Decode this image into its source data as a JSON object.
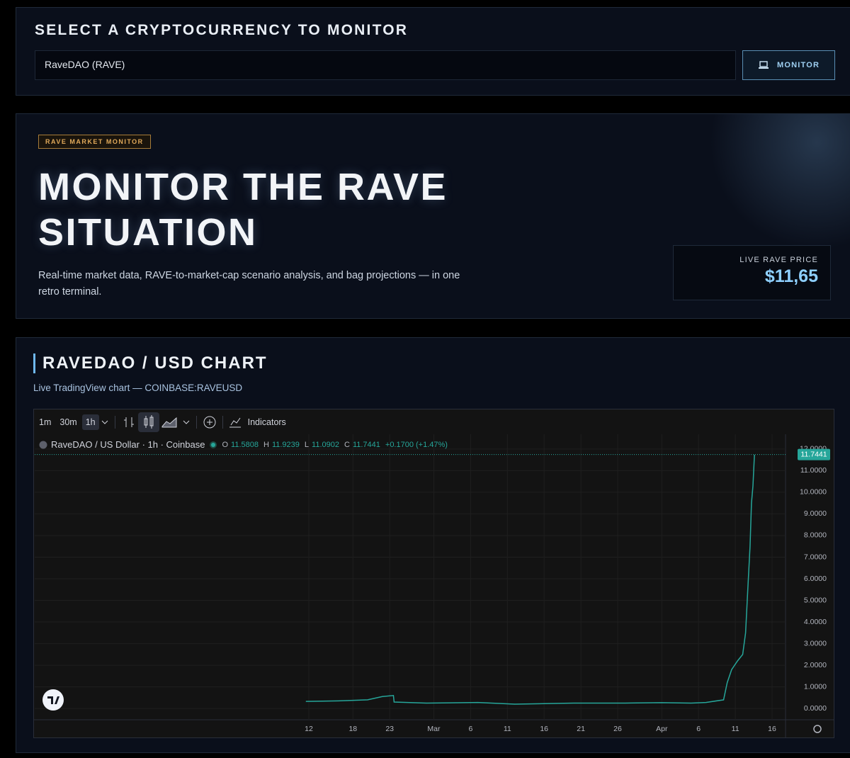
{
  "selector": {
    "title": "SELECT A CRYPTOCURRENCY TO MONITOR",
    "input_value": "RaveDAO (RAVE)",
    "button": "MONITOR"
  },
  "hero": {
    "badge": "RAVE MARKET MONITOR",
    "headline_lines": [
      "MONITOR THE RAVE",
      "SITUATION"
    ],
    "description_lines": [
      "Real-time market data, RAVE-to-market-cap scenario analysis, and bag projections — in one",
      "retro terminal."
    ],
    "price_label": "LIVE RAVE PRICE",
    "price": "$11,65"
  },
  "chart_section": {
    "title": "RAVEDAO / USD CHART",
    "subtitle": "Live TradingView chart — COINBASE:RAVEUSD",
    "toolbar": {
      "intervals": [
        "1m",
        "30m",
        "1h"
      ],
      "indicators": "Indicators"
    },
    "legend": {
      "symbol": "RaveDAO / US Dollar · 1h · Coinbase",
      "ohlc": [
        {
          "key": "O",
          "value": "11.5808"
        },
        {
          "key": "H",
          "value": "11.9239"
        },
        {
          "key": "L",
          "value": "11.0902"
        },
        {
          "key": "C",
          "value": "11.7441"
        }
      ],
      "change": "+0.1700 (+1.47%)"
    }
  },
  "chart_data": {
    "type": "line",
    "color": "#26a69a",
    "grid": true,
    "x": [
      11.6,
      16,
      20,
      22,
      23.5,
      23.6,
      28,
      35,
      40,
      48,
      55,
      60,
      64,
      66,
      68.4,
      68.9,
      69.5,
      70.3,
      71.0,
      71.4,
      71.7,
      72.0,
      72.2,
      72.4,
      72.6
    ],
    "values": [
      0.33,
      0.35,
      0.4,
      0.55,
      0.6,
      0.3,
      0.25,
      0.28,
      0.2,
      0.25,
      0.25,
      0.27,
      0.25,
      0.28,
      0.4,
      1.2,
      1.8,
      2.2,
      2.5,
      3.5,
      5.5,
      7.5,
      9.5,
      10.3,
      11.74
    ],
    "xlim": [
      -25.28,
      76.83
    ],
    "ylim": [
      -0.52,
      12.52
    ],
    "xticks": [
      {
        "value": 12,
        "label": "12"
      },
      {
        "value": 18,
        "label": "18"
      },
      {
        "value": 23,
        "label": "23"
      },
      {
        "value": 29,
        "label": "Mar"
      },
      {
        "value": 34,
        "label": "6"
      },
      {
        "value": 39,
        "label": "11"
      },
      {
        "value": 44,
        "label": "16"
      },
      {
        "value": 49,
        "label": "21"
      },
      {
        "value": 54,
        "label": "26"
      },
      {
        "value": 60,
        "label": "Apr"
      },
      {
        "value": 65,
        "label": "6"
      },
      {
        "value": 70,
        "label": "11"
      },
      {
        "value": 75,
        "label": "16"
      }
    ],
    "yticks": [
      {
        "value": 0,
        "label": "0.0000"
      },
      {
        "value": 1,
        "label": "1.0000"
      },
      {
        "value": 2,
        "label": "2.0000"
      },
      {
        "value": 3,
        "label": "3.0000"
      },
      {
        "value": 4,
        "label": "4.0000"
      },
      {
        "value": 5,
        "label": "5.0000"
      },
      {
        "value": 6,
        "label": "6.0000"
      },
      {
        "value": 7,
        "label": "7.0000"
      },
      {
        "value": 8,
        "label": "8.0000"
      },
      {
        "value": 9,
        "label": "9.0000"
      },
      {
        "value": 10,
        "label": "10.0000"
      },
      {
        "value": 11,
        "label": "11.0000"
      },
      {
        "value": 12,
        "label": "12.0000"
      }
    ],
    "last_price": 11.7441
  }
}
